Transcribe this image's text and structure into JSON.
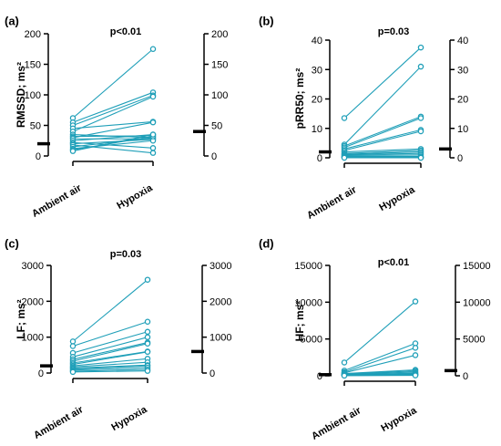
{
  "chart_data": [
    {
      "type": "line",
      "panel": "(a)",
      "annotation": "p<0.01",
      "ylabel": "RMSSD; ms²",
      "categories": [
        "Ambient air",
        "Hypoxia"
      ],
      "ylim": [
        0,
        200
      ],
      "yticks": [
        "0",
        "50",
        "100",
        "150",
        "200"
      ],
      "right_axis_ticks": [
        "0",
        "50",
        "100",
        "150",
        "200"
      ],
      "right_axis_mark": 40,
      "left_axis_mark": 20,
      "series": [
        {
          "values": [
            62,
            175
          ]
        },
        {
          "values": [
            55,
            104
          ]
        },
        {
          "values": [
            50,
            99
          ]
        },
        {
          "values": [
            45,
            56
          ]
        },
        {
          "values": [
            40,
            97
          ]
        },
        {
          "values": [
            35,
            30
          ]
        },
        {
          "values": [
            32,
            33
          ]
        },
        {
          "values": [
            30,
            55
          ]
        },
        {
          "values": [
            28,
            28
          ]
        },
        {
          "values": [
            25,
            35
          ]
        },
        {
          "values": [
            22,
            13
          ]
        },
        {
          "values": [
            20,
            27
          ]
        },
        {
          "values": [
            18,
            5
          ]
        },
        {
          "values": [
            15,
            30
          ]
        },
        {
          "values": [
            12,
            25
          ]
        },
        {
          "values": [
            10,
            32
          ]
        },
        {
          "values": [
            8,
            35
          ]
        }
      ]
    },
    {
      "type": "line",
      "panel": "(b)",
      "annotation": "p=0.03",
      "ylabel": "pRR50; ms²",
      "categories": [
        "Ambient air",
        "Hypoxia"
      ],
      "ylim": [
        0,
        40
      ],
      "yticks": [
        "0",
        "10",
        "20",
        "30",
        "40"
      ],
      "right_axis_ticks": [
        "0",
        "10",
        "20",
        "30",
        "40"
      ],
      "right_axis_mark": 3,
      "left_axis_mark": 2,
      "series": [
        {
          "values": [
            13.5,
            37.5
          ]
        },
        {
          "values": [
            4.5,
            31
          ]
        },
        {
          "values": [
            4,
            14
          ]
        },
        {
          "values": [
            3.5,
            13.5
          ]
        },
        {
          "values": [
            3,
            9.5
          ]
        },
        {
          "values": [
            2.5,
            9
          ]
        },
        {
          "values": [
            2,
            3
          ]
        },
        {
          "values": [
            1.5,
            2.5
          ]
        },
        {
          "values": [
            1.2,
            2
          ]
        },
        {
          "values": [
            1,
            1.5
          ]
        },
        {
          "values": [
            0.8,
            1
          ]
        },
        {
          "values": [
            0.5,
            0.5
          ]
        },
        {
          "values": [
            0.3,
            0.2
          ]
        },
        {
          "values": [
            0.1,
            0
          ]
        },
        {
          "values": [
            0,
            0
          ]
        }
      ]
    },
    {
      "type": "line",
      "panel": "(c)",
      "annotation": "p=0.03",
      "ylabel": "LF; ms²",
      "categories": [
        "Ambient air",
        "Hypoxia"
      ],
      "ylim": [
        0,
        3000
      ],
      "yticks": [
        "0",
        "1000",
        "2000",
        "3000"
      ],
      "right_axis_ticks": [
        "0",
        "1000",
        "2000",
        "3000"
      ],
      "right_axis_mark": 600,
      "left_axis_mark": 200,
      "series": [
        {
          "values": [
            880,
            2600
          ]
        },
        {
          "values": [
            750,
            1430
          ]
        },
        {
          "values": [
            560,
            1150
          ]
        },
        {
          "values": [
            450,
            1000
          ]
        },
        {
          "values": [
            380,
            850
          ]
        },
        {
          "values": [
            330,
            820
          ]
        },
        {
          "values": [
            280,
            600
          ]
        },
        {
          "values": [
            240,
            590
          ]
        },
        {
          "values": [
            200,
            400
          ]
        },
        {
          "values": [
            170,
            300
          ]
        },
        {
          "values": [
            140,
            220
          ]
        },
        {
          "values": [
            110,
            200
          ]
        },
        {
          "values": [
            80,
            150
          ]
        },
        {
          "values": [
            50,
            100
          ]
        },
        {
          "values": [
            30,
            60
          ]
        }
      ]
    },
    {
      "type": "line",
      "panel": "(d)",
      "annotation": "p<0.01",
      "ylabel": "HF; ms²",
      "categories": [
        "Ambient air",
        "Hypoxia"
      ],
      "ylim": [
        0,
        15000
      ],
      "yticks": [
        "0",
        "5000",
        "10000",
        "15000"
      ],
      "right_axis_ticks": [
        "0",
        "5000",
        "10000",
        "15000"
      ],
      "right_axis_mark": 700,
      "left_axis_mark": 150,
      "series": [
        {
          "values": [
            1800,
            10100
          ]
        },
        {
          "values": [
            700,
            4400
          ]
        },
        {
          "values": [
            500,
            3800
          ]
        },
        {
          "values": [
            400,
            2800
          ]
        },
        {
          "values": [
            300,
            800
          ]
        },
        {
          "values": [
            250,
            650
          ]
        },
        {
          "values": [
            200,
            500
          ]
        },
        {
          "values": [
            160,
            350
          ]
        },
        {
          "values": [
            120,
            250
          ]
        },
        {
          "values": [
            90,
            180
          ]
        },
        {
          "values": [
            60,
            120
          ]
        },
        {
          "values": [
            40,
            80
          ]
        },
        {
          "values": [
            20,
            50
          ]
        }
      ]
    }
  ],
  "style": {
    "line_color": "#1f9fb8",
    "marker_color": "#1f9fb8",
    "axis_color": "#000000"
  }
}
